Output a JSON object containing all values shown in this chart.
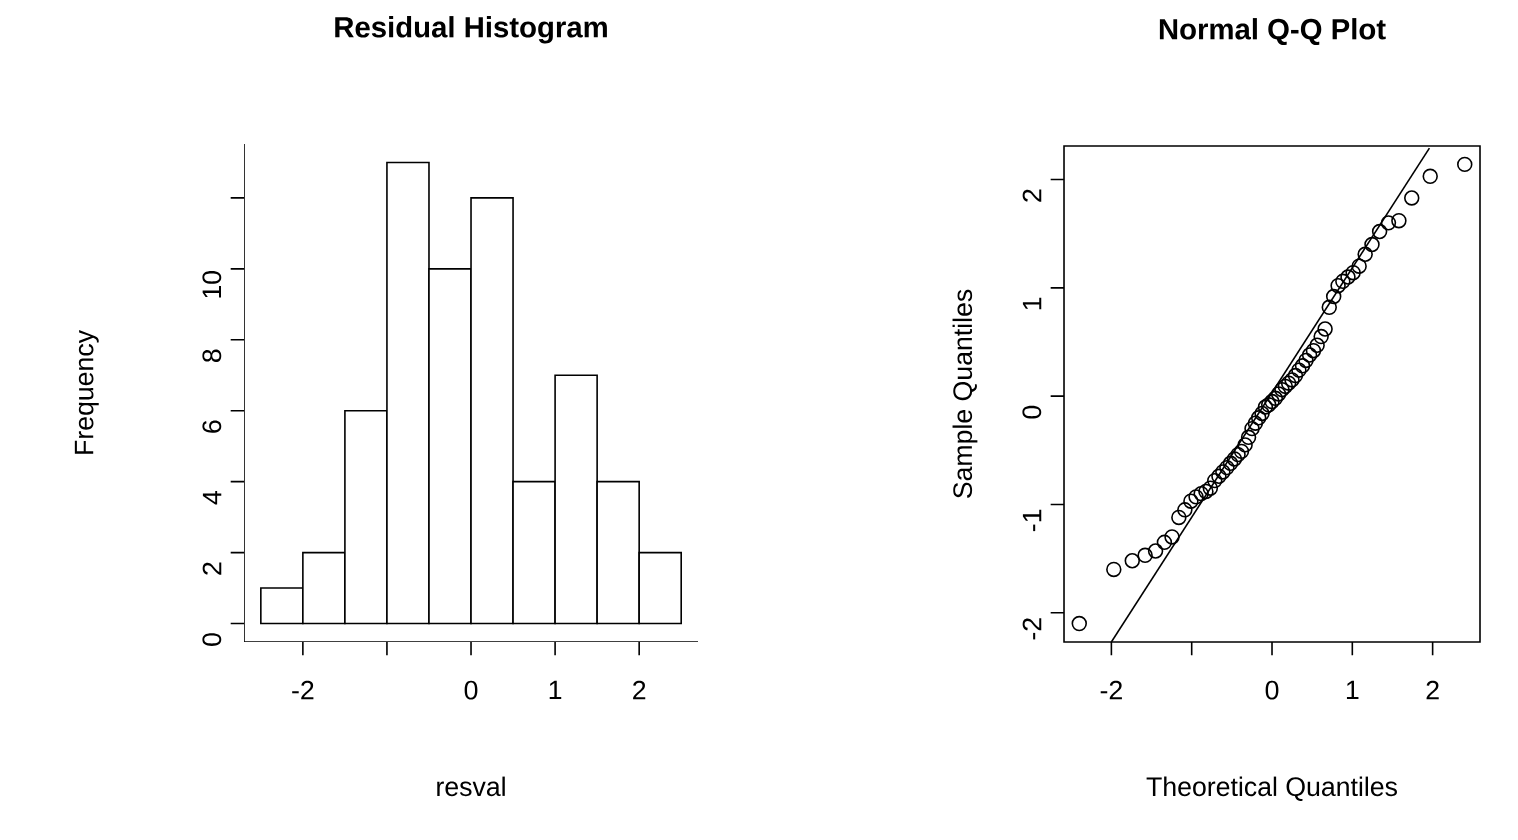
{
  "chart_data": [
    {
      "type": "histogram",
      "title": "Residual Histogram",
      "xlabel": "resval",
      "ylabel": "Frequency",
      "bins": [
        -2.5,
        -2,
        -1.5,
        -1,
        -0.5,
        0,
        0.5,
        1,
        1.5,
        2,
        2.5
      ],
      "values": [
        1,
        2,
        6,
        13,
        10,
        12,
        4,
        7,
        4,
        2
      ],
      "color": "#ffffff",
      "xlim": [
        -2.7,
        2.7
      ],
      "ylim": [
        -0.52,
        13.52
      ],
      "xticks": [
        -2,
        {
          "value": -1,
          "label": null
        },
        0,
        1,
        2
      ],
      "yticks": [
        0,
        2,
        4,
        6,
        8,
        10,
        {
          "value": 12,
          "label": null
        }
      ]
    },
    {
      "type": "scatter",
      "title": "Normal Q-Q Plot",
      "xlabel": "Theoretical Quantiles",
      "ylabel": "Sample Quantiles",
      "series": [
        {
          "type": "scatter",
          "color": "#000000",
          "marker": "circle",
          "x": [
            -2.4,
            -1.97,
            -1.74,
            -1.58,
            -1.45,
            -1.34,
            -1.245,
            -1.16,
            -1.085,
            -1.01,
            -0.946,
            -0.882,
            -0.823,
            -0.768,
            -0.713,
            -0.661,
            -0.612,
            -0.562,
            -0.516,
            -0.468,
            -0.423,
            -0.38,
            -0.335,
            -0.292,
            -0.249,
            -0.207,
            -0.166,
            -0.124,
            -0.082,
            -0.041,
            0,
            0.041,
            0.082,
            0.124,
            0.166,
            0.207,
            0.249,
            0.292,
            0.335,
            0.38,
            0.423,
            0.468,
            0.516,
            0.562,
            0.612,
            0.661,
            0.713,
            0.768,
            0.823,
            0.882,
            0.946,
            1.01,
            1.085,
            1.16,
            1.245,
            1.34,
            1.45,
            1.58,
            1.74,
            1.97,
            2.4
          ],
          "values": [
            -2.1,
            -1.6,
            -1.52,
            -1.47,
            -1.43,
            -1.35,
            -1.3,
            -1.12,
            -1.05,
            -0.97,
            -0.93,
            -0.9,
            -0.88,
            -0.85,
            -0.78,
            -0.74,
            -0.7,
            -0.66,
            -0.62,
            -0.58,
            -0.54,
            -0.51,
            -0.45,
            -0.38,
            -0.3,
            -0.25,
            -0.2,
            -0.16,
            -0.1,
            -0.08,
            -0.05,
            -0.02,
            0.02,
            0.06,
            0.09,
            0.12,
            0.15,
            0.19,
            0.24,
            0.28,
            0.33,
            0.38,
            0.42,
            0.47,
            0.55,
            0.62,
            0.82,
            0.92,
            1.02,
            1.06,
            1.1,
            1.14,
            1.2,
            1.31,
            1.4,
            1.52,
            1.6,
            1.62,
            1.83,
            2.03,
            2.14
          ]
        },
        {
          "type": "line",
          "color": "#000000",
          "x": [
            -2.0,
            1.96
          ],
          "values": [
            -2.27,
            2.29
          ]
        }
      ],
      "xlim": [
        -2.59,
        2.59
      ],
      "ylim": [
        -2.27,
        2.31
      ],
      "xticks": [
        -2,
        {
          "value": -1,
          "label": null
        },
        0,
        1,
        2
      ],
      "yticks": [
        -2,
        -1,
        0,
        1,
        2
      ]
    }
  ]
}
